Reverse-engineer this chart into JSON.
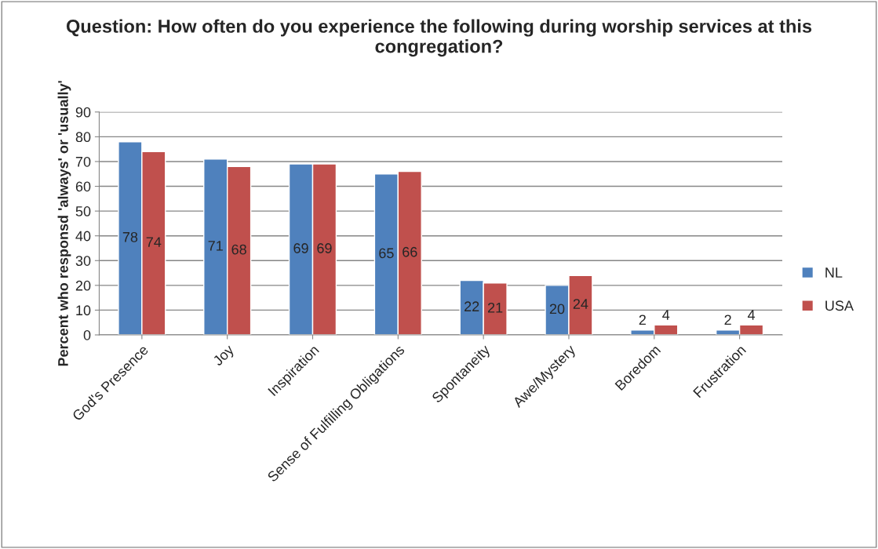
{
  "chart_data": {
    "type": "bar",
    "title": "Question: How often do you experience the following during worship services at this congregation?",
    "ylabel": "Percent who responsd 'always' or 'usually'",
    "categories": [
      "God's Presence",
      "Joy",
      "Inspiration",
      "Sense of Fulfilling Obligations",
      "Spontaneity",
      "Awe/Mystery",
      "Boredom",
      "Frustration"
    ],
    "series": [
      {
        "name": "NL",
        "color": "#4f81bd",
        "values": [
          78,
          71,
          69,
          65,
          22,
          20,
          2,
          2
        ]
      },
      {
        "name": "USA",
        "color": "#c0504d",
        "values": [
          74,
          68,
          69,
          66,
          21,
          24,
          4,
          4
        ]
      }
    ],
    "ylim": [
      0,
      90
    ],
    "yticks": [
      0,
      10,
      20,
      30,
      40,
      50,
      60,
      70,
      80,
      90
    ],
    "grid": "y",
    "legend": "right",
    "data_labels": true
  }
}
